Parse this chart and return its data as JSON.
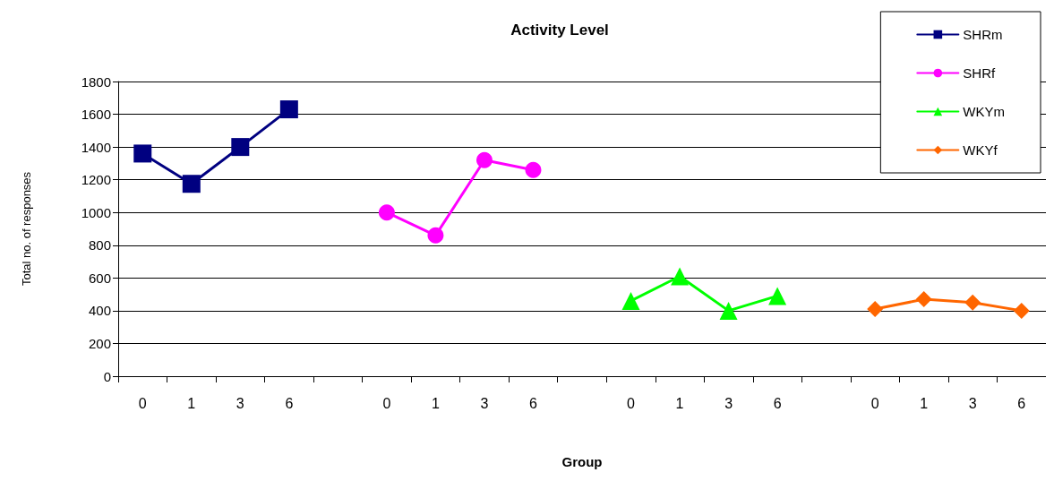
{
  "chart_data": {
    "type": "line",
    "title": "Activity Level",
    "xlabel": "Group",
    "ylabel": "Total no. of responses",
    "categories": [
      "0",
      "1",
      "3",
      "6",
      null,
      "0",
      "1",
      "3",
      "6",
      null,
      "0",
      "1",
      "3",
      "6",
      null,
      "0",
      "1",
      "3",
      "6"
    ],
    "series": [
      {
        "name": "SHRm",
        "color": "#000080",
        "marker": "square",
        "values": [
          1360,
          1175,
          1400,
          1630,
          null,
          null,
          null,
          null,
          null,
          null,
          null,
          null,
          null,
          null,
          null,
          null,
          null,
          null,
          null
        ]
      },
      {
        "name": "SHRf",
        "color": "#ff00ff",
        "marker": "circle",
        "values": [
          null,
          null,
          null,
          null,
          null,
          1000,
          860,
          1320,
          1260,
          null,
          null,
          null,
          null,
          null,
          null,
          null,
          null,
          null,
          null
        ]
      },
      {
        "name": "WKYm",
        "color": "#00ff00",
        "marker": "triangle",
        "values": [
          null,
          null,
          null,
          null,
          null,
          null,
          null,
          null,
          null,
          null,
          460,
          610,
          400,
          490,
          null,
          null,
          null,
          null,
          null
        ]
      },
      {
        "name": "WKYf",
        "color": "#ff6600",
        "marker": "diamond",
        "values": [
          null,
          null,
          null,
          null,
          null,
          null,
          null,
          null,
          null,
          null,
          null,
          null,
          null,
          null,
          null,
          410,
          470,
          450,
          400
        ]
      }
    ],
    "ylim": [
      0,
      1800
    ],
    "yticks": [
      0,
      200,
      400,
      600,
      800,
      1000,
      1200,
      1400,
      1600,
      1800
    ],
    "grid": "y",
    "legend": "top right",
    "line_style": "solid"
  }
}
